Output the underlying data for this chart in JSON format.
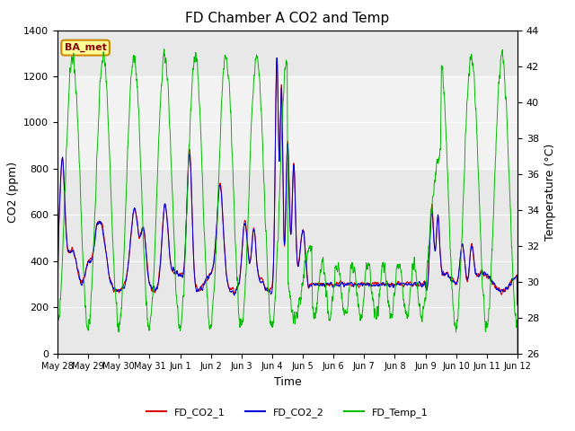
{
  "title": "FD Chamber A CO2 and Temp",
  "xlabel": "Time",
  "ylabel_left": "CO2 (ppm)",
  "ylabel_right": "Temperature (°C)",
  "ylim_left": [
    0,
    1400
  ],
  "ylim_right": [
    26,
    44
  ],
  "yticks_left": [
    0,
    200,
    400,
    600,
    800,
    1000,
    1200,
    1400
  ],
  "yticks_right": [
    26,
    28,
    30,
    32,
    34,
    36,
    38,
    40,
    42,
    44
  ],
  "x_tick_labels": [
    "May 28",
    "May 29",
    "May 30",
    "May 31",
    "Jun 1",
    "Jun 2",
    "Jun 3",
    "Jun 4",
    "Jun 5",
    "Jun 6",
    "Jun 7",
    "Jun 8",
    "Jun 9",
    "Jun 10",
    "Jun 11",
    "Jun 12"
  ],
  "legend_labels": [
    "FD_CO2_1",
    "FD_CO2_2",
    "FD_Temp_1"
  ],
  "line_colors": [
    "#dd0000",
    "#0000dd",
    "#00bb00"
  ],
  "annotation_text": "BA_met",
  "annotation_bg": "#ffff99",
  "annotation_border": "#cc8800",
  "shading_co2_low": 800,
  "shading_co2_high": 1200,
  "background_color": "#ffffff",
  "plot_bg_color": "#e8e8e8"
}
